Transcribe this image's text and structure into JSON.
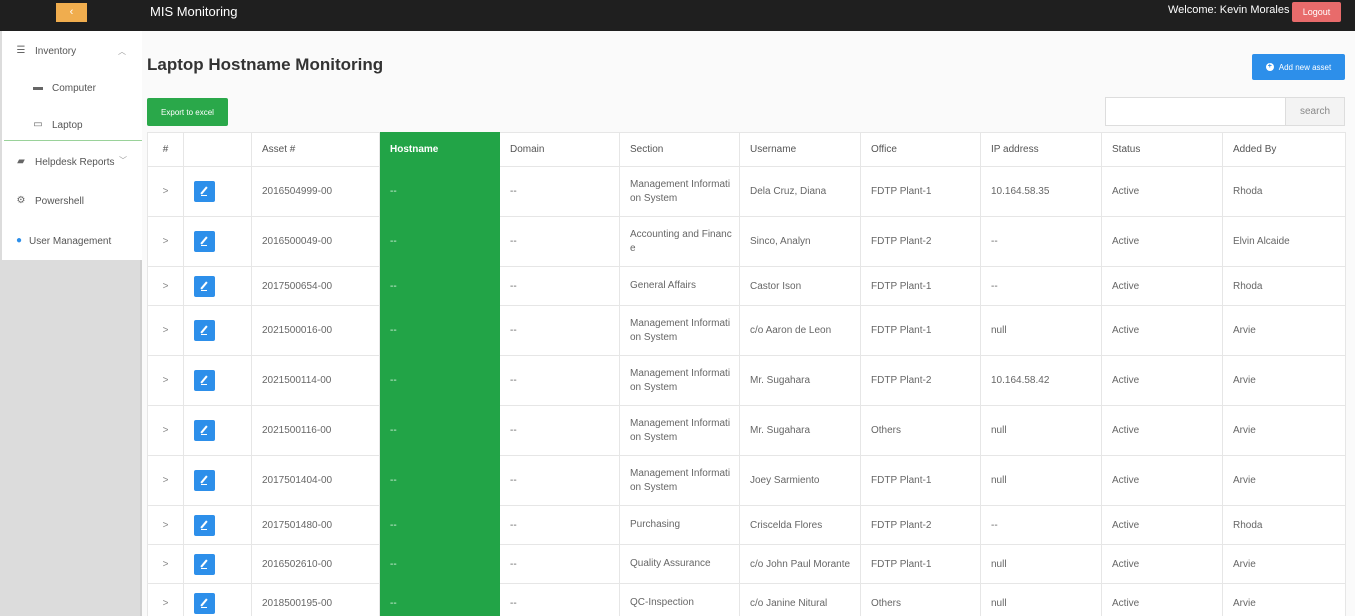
{
  "header": {
    "toggle_label": "‹",
    "app_title": "MIS Monitoring",
    "welcome": "Welcome: Kevin Morales",
    "logout_label": "Logout"
  },
  "sidebar": {
    "inventory": "Inventory",
    "computer": "Computer",
    "laptop": "Laptop",
    "helpdesk": "Helpdesk Reports",
    "powershell": "Powershell",
    "user_management": "User Management"
  },
  "page": {
    "title": "Laptop Hostname Monitoring",
    "add_label": "Add new asset",
    "export_label": "Export to excel",
    "search_placeholder": "",
    "search_label": "search"
  },
  "table": {
    "headers": [
      "#",
      "",
      "Asset #",
      "Hostname",
      "Domain",
      "Section",
      "Username",
      "Office",
      "IP address",
      "Status",
      "Added By"
    ],
    "rows": [
      {
        "asset": "2016504999-00",
        "hostname": "--",
        "domain": "--",
        "section": "Management Informati on System",
        "username": "Dela Cruz, Diana",
        "office": "FDTP Plant-1",
        "ip": "10.164.58.35",
        "status": "Active",
        "added_by": "Rhoda"
      },
      {
        "asset": "2016500049-00",
        "hostname": "--",
        "domain": "--",
        "section": "Accounting and Financ e",
        "username": "Sinco, Analyn",
        "office": "FDTP Plant-2",
        "ip": "--",
        "status": "Active",
        "added_by": "Elvin Alcaide"
      },
      {
        "asset": "2017500654-00",
        "hostname": "--",
        "domain": "--",
        "section": "General Affairs",
        "username": "Castor Ison",
        "office": "FDTP Plant-1",
        "ip": "--",
        "status": "Active",
        "added_by": "Rhoda"
      },
      {
        "asset": "2021500016-00",
        "hostname": "--",
        "domain": "--",
        "section": "Management Informati on System",
        "username": "c/o Aaron de Leon",
        "office": "FDTP Plant-1",
        "ip": "null",
        "status": "Active",
        "added_by": "Arvie"
      },
      {
        "asset": "2021500114-00",
        "hostname": "--",
        "domain": "--",
        "section": "Management Informati on System",
        "username": "Mr. Sugahara",
        "office": "FDTP Plant-2",
        "ip": "10.164.58.42",
        "status": "Active",
        "added_by": "Arvie"
      },
      {
        "asset": "2021500116-00",
        "hostname": "--",
        "domain": "--",
        "section": "Management Informati on System",
        "username": "Mr. Sugahara",
        "office": "Others",
        "ip": "null",
        "status": "Active",
        "added_by": "Arvie"
      },
      {
        "asset": "2017501404-00",
        "hostname": "--",
        "domain": "--",
        "section": "Management Informati on System",
        "username": "Joey Sarmiento",
        "office": "FDTP Plant-1",
        "ip": "null",
        "status": "Active",
        "added_by": "Arvie"
      },
      {
        "asset": "2017501480-00",
        "hostname": "--",
        "domain": "--",
        "section": "Purchasing",
        "username": "Criscelda Flores",
        "office": "FDTP Plant-2",
        "ip": "--",
        "status": "Active",
        "added_by": "Rhoda"
      },
      {
        "asset": "2016502610-00",
        "hostname": "--",
        "domain": "--",
        "section": "Quality Assurance",
        "username": "c/o John Paul Morante",
        "office": "FDTP Plant-1",
        "ip": "null",
        "status": "Active",
        "added_by": "Arvie"
      },
      {
        "asset": "2018500195-00",
        "hostname": "--",
        "domain": "--",
        "section": "QC-Inspection",
        "username": "c/o Janine Nitural",
        "office": "Others",
        "ip": "null",
        "status": "Active",
        "added_by": "Arvie"
      }
    ]
  }
}
